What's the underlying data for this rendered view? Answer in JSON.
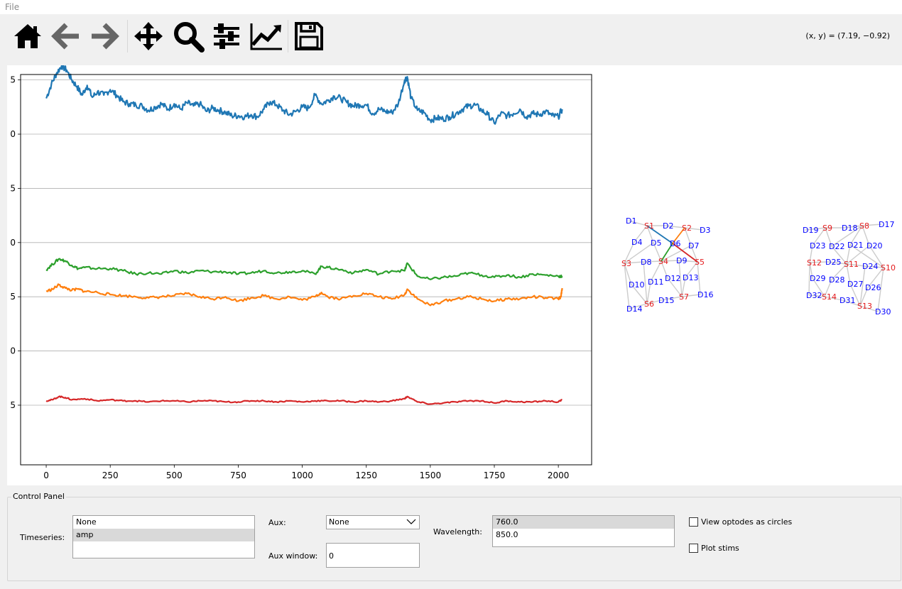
{
  "menu": {
    "file": "File"
  },
  "toolbar": {
    "buttons": [
      {
        "name": "home",
        "icon": "home-icon"
      },
      {
        "name": "back",
        "icon": "arrow-left-icon"
      },
      {
        "name": "forward",
        "icon": "arrow-right-icon"
      },
      {
        "name": "pan",
        "icon": "move-icon"
      },
      {
        "name": "zoom",
        "icon": "magnifier-icon"
      },
      {
        "name": "configure-subplots",
        "icon": "sliders-icon"
      },
      {
        "name": "edit-axis",
        "icon": "line-chart-icon"
      },
      {
        "name": "save",
        "icon": "floppy-disk-icon"
      }
    ],
    "coordinates": "(x, y) = (7.19, −0.92)"
  },
  "chart_data": {
    "type": "line",
    "title": "",
    "xlabel": "",
    "ylabel": "",
    "xlim": [
      -100,
      2130
    ],
    "ylim": [
      -30.5,
      5.5
    ],
    "x_ticks": [
      "0",
      "250",
      "500",
      "750",
      "1000",
      "1250",
      "1500",
      "1750",
      "2000"
    ],
    "y_ticks": [
      "5",
      "0",
      "5",
      "0",
      "5",
      "0",
      "5"
    ],
    "grid": "horizontal",
    "series": [
      {
        "color": "#1f77b4",
        "x": [
          0,
          20,
          40,
          60,
          80,
          100,
          120,
          140,
          160,
          180,
          200,
          225,
          250,
          275,
          300,
          325,
          350,
          375,
          400,
          425,
          450,
          475,
          500,
          525,
          550,
          575,
          600,
          625,
          650,
          675,
          700,
          725,
          750,
          775,
          800,
          825,
          850,
          875,
          900,
          925,
          950,
          975,
          1000,
          1025,
          1050,
          1075,
          1100,
          1125,
          1150,
          1175,
          1200,
          1225,
          1250,
          1275,
          1300,
          1325,
          1350,
          1375,
          1400,
          1410,
          1425,
          1450,
          1475,
          1500,
          1525,
          1550,
          1575,
          1600,
          1625,
          1650,
          1675,
          1700,
          1725,
          1750,
          1775,
          1800,
          1825,
          1850,
          1875,
          1900,
          1925,
          1950,
          1975,
          2000,
          2015
        ],
        "y": [
          3.3,
          4.6,
          5.6,
          6.3,
          5.9,
          5.0,
          4.4,
          3.6,
          4.5,
          3.4,
          3.9,
          3.6,
          4.1,
          3.6,
          3.0,
          2.8,
          2.7,
          2.6,
          2.2,
          2.5,
          2.8,
          2.3,
          2.8,
          2.3,
          2.9,
          2.6,
          2.8,
          2.1,
          2.4,
          2.2,
          2.0,
          1.7,
          1.7,
          1.6,
          1.8,
          1.6,
          2.3,
          3.0,
          2.7,
          2.2,
          1.8,
          2.1,
          2.5,
          2.4,
          3.6,
          2.8,
          3.1,
          3.5,
          3.3,
          2.9,
          2.6,
          2.7,
          2.7,
          1.9,
          2.3,
          2.1,
          2.0,
          2.8,
          5.0,
          5.3,
          3.3,
          2.2,
          2.0,
          1.3,
          1.5,
          1.4,
          1.6,
          1.9,
          2.3,
          2.6,
          2.7,
          2.2,
          1.8,
          1.0,
          1.9,
          1.7,
          1.9,
          2.3,
          1.6,
          1.9,
          1.8,
          2.1,
          1.7,
          1.6,
          2.3
        ]
      },
      {
        "color": "#2ca02c",
        "x": [
          0,
          25,
          50,
          75,
          100,
          125,
          150,
          200,
          250,
          300,
          350,
          400,
          450,
          500,
          550,
          600,
          650,
          700,
          750,
          800,
          850,
          900,
          950,
          1000,
          1050,
          1075,
          1100,
          1150,
          1200,
          1250,
          1300,
          1350,
          1400,
          1410,
          1450,
          1500,
          1550,
          1600,
          1650,
          1700,
          1750,
          1800,
          1850,
          1900,
          1950,
          2000,
          2015
        ],
        "y": [
          -12.5,
          -12.0,
          -11.5,
          -11.7,
          -12.1,
          -12.4,
          -12.3,
          -12.4,
          -12.4,
          -12.6,
          -12.9,
          -12.8,
          -12.9,
          -12.6,
          -12.8,
          -12.6,
          -12.7,
          -12.7,
          -12.9,
          -12.8,
          -12.6,
          -12.8,
          -12.7,
          -12.6,
          -12.9,
          -12.2,
          -12.3,
          -12.5,
          -12.8,
          -12.5,
          -12.9,
          -12.6,
          -12.6,
          -11.9,
          -13.1,
          -13.4,
          -13.2,
          -13.1,
          -12.8,
          -13.0,
          -13.2,
          -13.0,
          -13.2,
          -12.9,
          -13.0,
          -13.1,
          -13.1
        ]
      },
      {
        "color": "#ff7f0e",
        "x": [
          0,
          25,
          50,
          75,
          100,
          125,
          150,
          200,
          250,
          300,
          350,
          400,
          450,
          500,
          550,
          600,
          650,
          700,
          750,
          800,
          850,
          900,
          950,
          1000,
          1050,
          1075,
          1100,
          1150,
          1200,
          1250,
          1300,
          1350,
          1400,
          1410,
          1450,
          1500,
          1550,
          1600,
          1650,
          1700,
          1750,
          1800,
          1850,
          1900,
          1950,
          2000,
          2010,
          2015
        ],
        "y": [
          -14.5,
          -14.3,
          -13.9,
          -14.2,
          -14.4,
          -14.3,
          -14.5,
          -14.6,
          -14.8,
          -14.9,
          -15.0,
          -15.1,
          -15.0,
          -14.9,
          -14.7,
          -15.0,
          -15.2,
          -15.0,
          -15.4,
          -15.1,
          -14.9,
          -15.2,
          -15.0,
          -15.3,
          -15.0,
          -14.6,
          -15.0,
          -15.2,
          -14.9,
          -14.7,
          -15.0,
          -15.2,
          -14.8,
          -14.3,
          -15.2,
          -15.8,
          -15.4,
          -15.2,
          -15.0,
          -15.2,
          -15.4,
          -15.2,
          -15.2,
          -15.0,
          -15.1,
          -15.2,
          -15.0,
          -14.2
        ]
      },
      {
        "color": "#d62728",
        "x": [
          0,
          25,
          50,
          75,
          100,
          150,
          200,
          250,
          300,
          350,
          400,
          450,
          500,
          550,
          600,
          650,
          700,
          750,
          800,
          850,
          900,
          950,
          1000,
          1050,
          1100,
          1150,
          1200,
          1250,
          1300,
          1350,
          1400,
          1410,
          1450,
          1500,
          1550,
          1600,
          1650,
          1700,
          1750,
          1800,
          1850,
          1900,
          1950,
          2000,
          2015
        ],
        "y": [
          -24.6,
          -24.5,
          -24.2,
          -24.3,
          -24.5,
          -24.4,
          -24.6,
          -24.5,
          -24.6,
          -24.6,
          -24.7,
          -24.6,
          -24.6,
          -24.7,
          -24.6,
          -24.6,
          -24.7,
          -24.7,
          -24.6,
          -24.6,
          -24.7,
          -24.6,
          -24.7,
          -24.6,
          -24.6,
          -24.6,
          -24.7,
          -24.6,
          -24.7,
          -24.6,
          -24.4,
          -24.2,
          -24.7,
          -24.9,
          -24.8,
          -24.7,
          -24.6,
          -24.6,
          -24.8,
          -24.6,
          -24.7,
          -24.7,
          -24.6,
          -24.7,
          -24.5
        ]
      }
    ]
  },
  "probe": {
    "left": [
      {
        "label": "D1",
        "kind": "detector"
      },
      {
        "label": "S1",
        "kind": "source"
      },
      {
        "label": "D2",
        "kind": "detector"
      },
      {
        "label": "S2",
        "kind": "source"
      },
      {
        "label": "D3",
        "kind": "detector"
      },
      {
        "label": "D4",
        "kind": "detector"
      },
      {
        "label": "D5",
        "kind": "detector"
      },
      {
        "label": "D6",
        "kind": "detector"
      },
      {
        "label": "D7",
        "kind": "detector"
      },
      {
        "label": "S3",
        "kind": "source"
      },
      {
        "label": "D8",
        "kind": "detector"
      },
      {
        "label": "S4",
        "kind": "source"
      },
      {
        "label": "D9",
        "kind": "detector"
      },
      {
        "label": "S5",
        "kind": "source"
      },
      {
        "label": "D10",
        "kind": "detector"
      },
      {
        "label": "D11",
        "kind": "detector"
      },
      {
        "label": "D12",
        "kind": "detector"
      },
      {
        "label": "D13",
        "kind": "detector"
      },
      {
        "label": "D14",
        "kind": "detector"
      },
      {
        "label": "S6",
        "kind": "source"
      },
      {
        "label": "D15",
        "kind": "detector"
      },
      {
        "label": "S7",
        "kind": "source"
      },
      {
        "label": "D16",
        "kind": "detector"
      }
    ],
    "right": [
      {
        "label": "D19",
        "kind": "detector"
      },
      {
        "label": "S9",
        "kind": "source"
      },
      {
        "label": "D18",
        "kind": "detector"
      },
      {
        "label": "S8",
        "kind": "source"
      },
      {
        "label": "D17",
        "kind": "detector"
      },
      {
        "label": "D23",
        "kind": "detector"
      },
      {
        "label": "D22",
        "kind": "detector"
      },
      {
        "label": "D21",
        "kind": "detector"
      },
      {
        "label": "D20",
        "kind": "detector"
      },
      {
        "label": "S12",
        "kind": "source"
      },
      {
        "label": "D25",
        "kind": "detector"
      },
      {
        "label": "S11",
        "kind": "source"
      },
      {
        "label": "D24",
        "kind": "detector"
      },
      {
        "label": "S10",
        "kind": "source"
      },
      {
        "label": "D29",
        "kind": "detector"
      },
      {
        "label": "D28",
        "kind": "detector"
      },
      {
        "label": "D27",
        "kind": "detector"
      },
      {
        "label": "D26",
        "kind": "detector"
      },
      {
        "label": "D32",
        "kind": "detector"
      },
      {
        "label": "S14",
        "kind": "source"
      },
      {
        "label": "D31",
        "kind": "detector"
      },
      {
        "label": "S13",
        "kind": "source"
      },
      {
        "label": "D30",
        "kind": "detector"
      }
    ],
    "source_color": "#e41a1c",
    "detector_color": "#0000ff"
  },
  "control_panel": {
    "title": "Control Panel",
    "timeseries_label": "Timeseries:",
    "timeseries_options": [
      "None",
      "amp"
    ],
    "timeseries_selected": "amp",
    "aux_label": "Aux:",
    "aux_value": "None",
    "aux_window_label": "Aux window:",
    "aux_window_value": "0",
    "wavelength_label": "Wavelength:",
    "wavelength_options": [
      "760.0",
      "850.0"
    ],
    "wavelength_selected": "760.0",
    "view_optodes_label": "View optodes as circles",
    "view_optodes_checked": false,
    "plot_stims_label": "Plot stims",
    "plot_stims_checked": false
  }
}
